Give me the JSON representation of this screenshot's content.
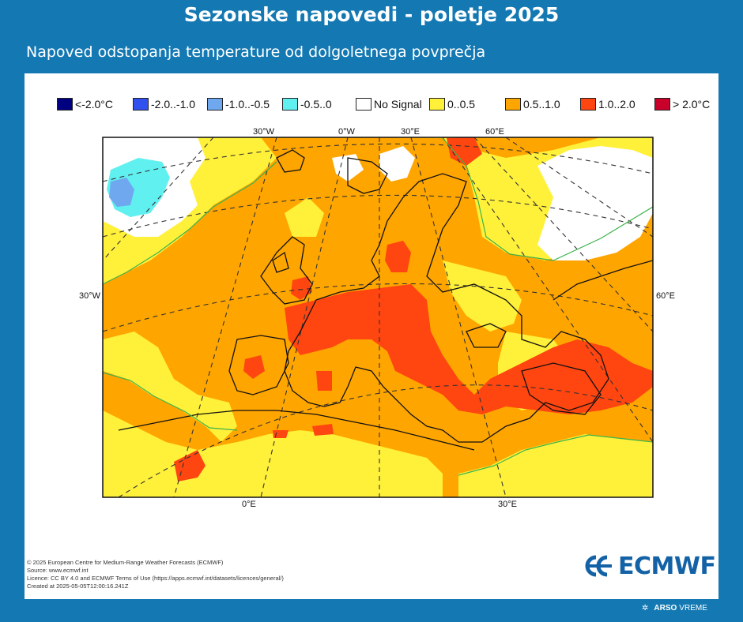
{
  "header": {
    "title": "Sezonske napovedi - poletje 2025",
    "subtitle": "Napoved odstopanja temperature od dolgoletnega povprečja"
  },
  "legend": [
    {
      "label": "<-2.0°C",
      "color": "#000080"
    },
    {
      "label": "-2.0..-1.0",
      "color": "#3050f0"
    },
    {
      "label": "-1.0..-0.5",
      "color": "#70a8f0"
    },
    {
      "label": "-0.5..0",
      "color": "#60f0f0"
    },
    {
      "label": "No Signal",
      "color": "#ffffff"
    },
    {
      "label": "0..0.5",
      "color": "#fff03a"
    },
    {
      "label": "0.5..1.0",
      "color": "#ffa500"
    },
    {
      "label": "1.0..2.0",
      "color": "#ff4510"
    },
    {
      "label": "> 2.0°C",
      "color": "#c8002a"
    }
  ],
  "map": {
    "top_labels": [
      "30°W",
      "0°W",
      "30°E",
      "60°E"
    ],
    "bottom_labels": [
      "0°E",
      "30°E"
    ],
    "left_label": "30°W",
    "right_label": "60°E"
  },
  "credits": [
    "© 2025 European Centre for Medium-Range Weather Forecasts (ECMWF)",
    "Source: www.ecmwf.int",
    "Licence: CC BY 4.0 and ECMWF Terms of Use (https://apps.ecmwf.int/datasets/licences/general/)",
    "Created at 2025-05-05T12:00:16.241Z"
  ],
  "logo": {
    "text": "ECMWF"
  },
  "footer": {
    "brand_bold": "ARSO",
    "brand_light": "VREME"
  }
}
